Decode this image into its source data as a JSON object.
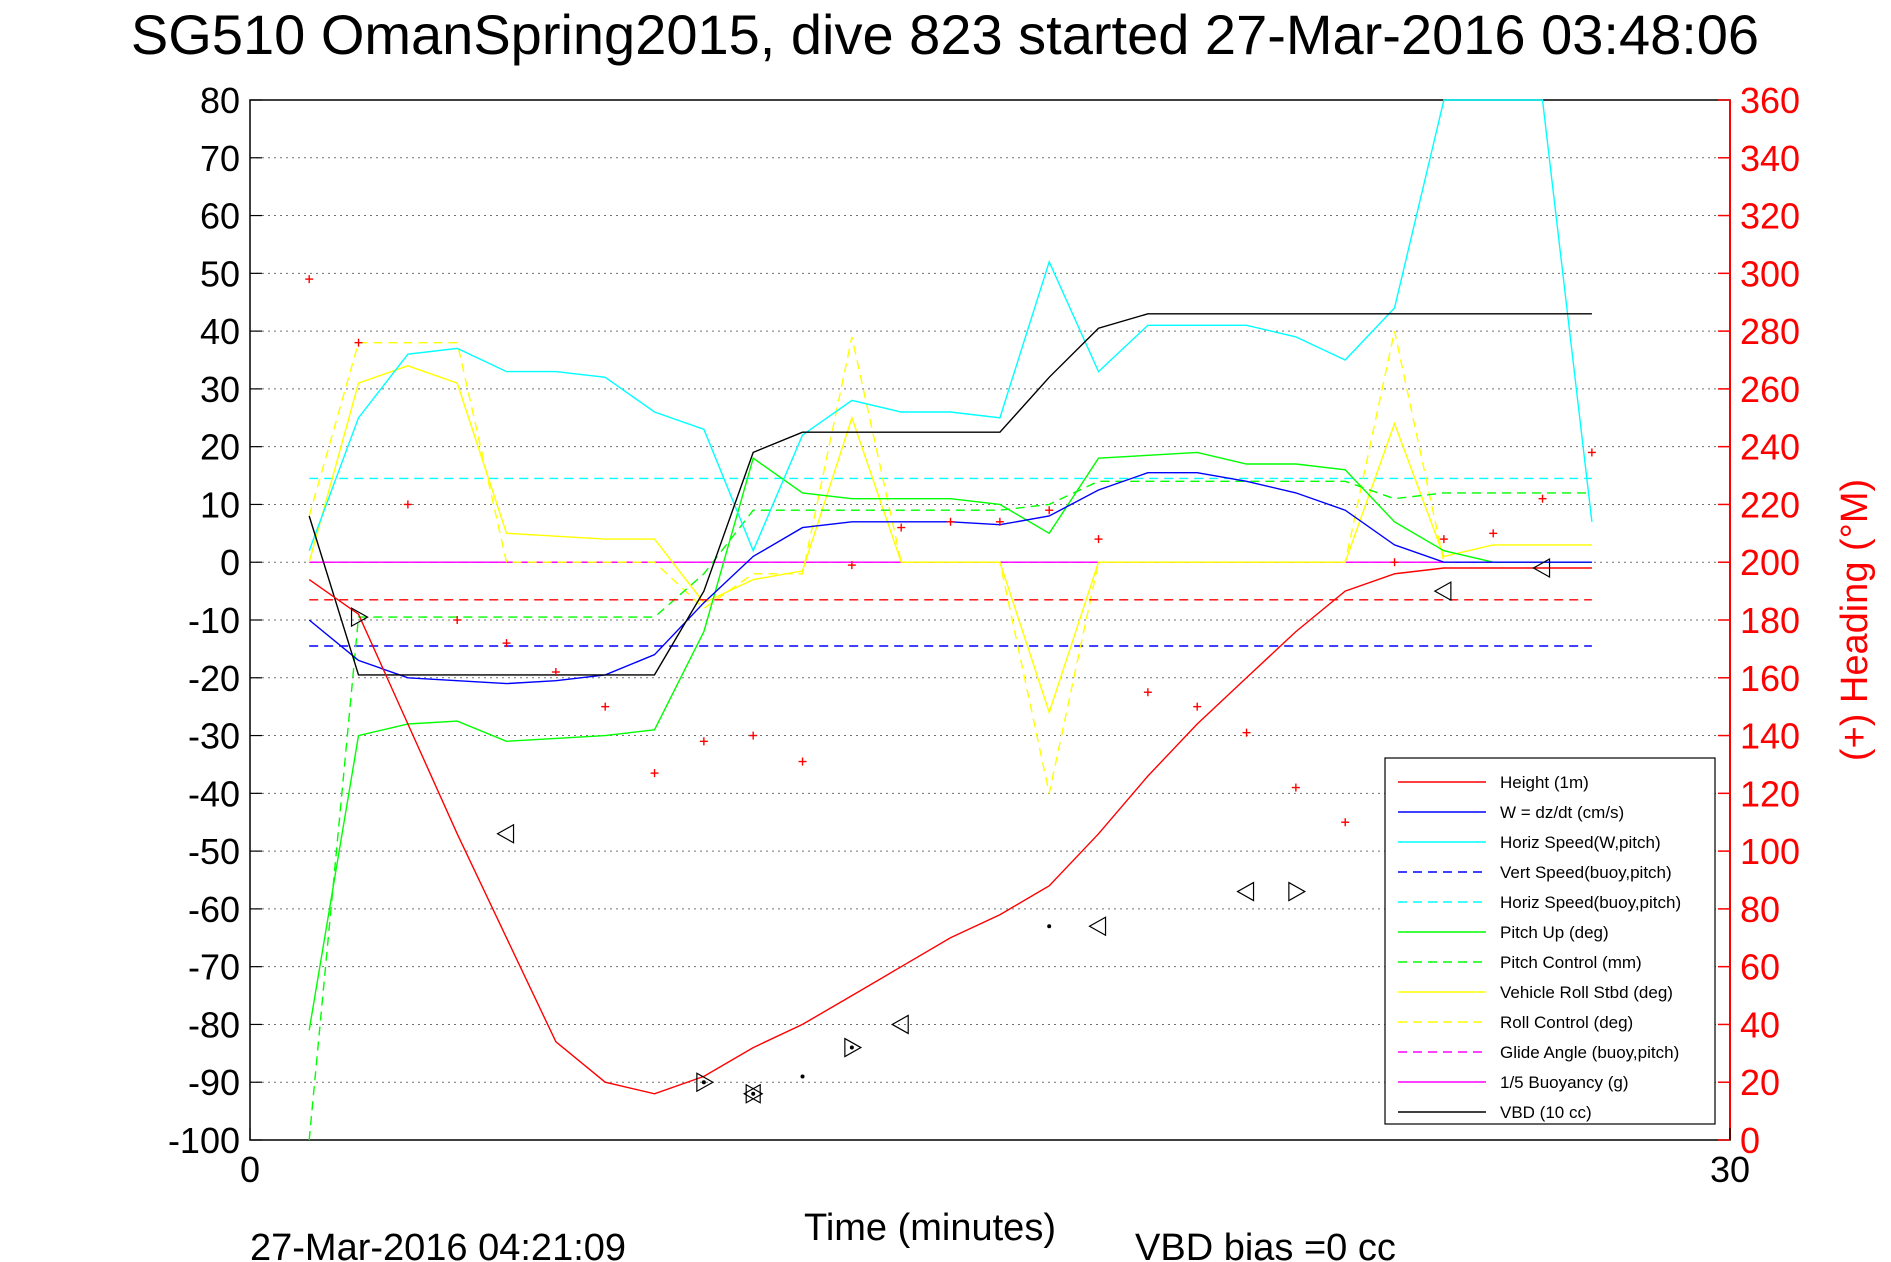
{
  "chart_data": {
    "type": "line",
    "title": "SG510 OmanSpring2015, dive 823 started 27-Mar-2016 03:48:06",
    "xlabel": "Time (minutes)",
    "ylabel_right": "(+) Heading (°M)",
    "footer_left": "27-Mar-2016 04:21:09",
    "footer_right": "VBD bias =0 cc",
    "xlim": [
      0,
      30
    ],
    "ylim": [
      -100,
      80
    ],
    "y2lim": [
      0,
      360
    ],
    "grid": true,
    "legend_position": "bottom-right",
    "x_ticks": [
      "0",
      "30"
    ],
    "y_ticks": [
      "80",
      "70",
      "60",
      "50",
      "40",
      "30",
      "20",
      "10",
      "0",
      "-10",
      "-20",
      "-30",
      "-40",
      "-50",
      "-60",
      "-70",
      "-80",
      "-90",
      "-100"
    ],
    "y2_ticks": [
      "360",
      "340",
      "320",
      "300",
      "280",
      "260",
      "240",
      "220",
      "200",
      "180",
      "160",
      "140",
      "120",
      "100",
      "80",
      "60",
      "40",
      "20",
      "0"
    ],
    "colors": {
      "red": "#ff0000",
      "blue": "#0000ff",
      "cyan": "#00ffff",
      "green": "#00ff00",
      "yellow": "#ffff00",
      "magenta": "#ff00ff",
      "black": "#000000"
    },
    "series": [
      {
        "name": "Height (1m)",
        "color": "#ff0000",
        "dash": false,
        "x": [
          1.2,
          2.2,
          3.2,
          4.2,
          5.2,
          6.2,
          7.2,
          8.2,
          9.2,
          10.2,
          11.2,
          12.2,
          13.2,
          14.2,
          15.2,
          16.2,
          17.2,
          18.2,
          19.2,
          20.2,
          21.2,
          22.2,
          23.2,
          24.2,
          25.2,
          26.2,
          27.2
        ],
        "y": [
          -3,
          -9,
          -28,
          -47,
          -65,
          -83,
          -90,
          -92,
          -89,
          -84,
          -80,
          -75,
          -70,
          -65,
          -61,
          -56,
          -47,
          -37,
          -28,
          -20,
          -12,
          -5,
          -2,
          -1,
          -1,
          -1,
          -1
        ]
      },
      {
        "name": "W = dz/dt (cm/s)",
        "color": "#0000ff",
        "dash": false,
        "x": [
          1.2,
          2.2,
          3.2,
          4.2,
          5.2,
          6.2,
          7.2,
          8.2,
          9.2,
          10.2,
          11.2,
          12.2,
          13.2,
          14.2,
          15.2,
          16.2,
          17.2,
          18.2,
          19.2,
          20.2,
          21.2,
          22.2,
          23.2,
          24.2,
          25.2,
          26.2,
          27.2
        ],
        "y": [
          -10,
          -17,
          -20,
          -20.5,
          -21,
          -20.5,
          -19.5,
          -16,
          -7,
          1,
          6,
          7,
          7,
          7,
          6.5,
          8,
          12.5,
          15.5,
          15.5,
          14,
          12,
          9,
          3,
          0,
          0,
          0,
          0
        ]
      },
      {
        "name": "Horiz Speed(W,pitch)",
        "color": "#00ffff",
        "dash": false,
        "x": [
          1.2,
          2.2,
          3.2,
          4.2,
          5.2,
          6.2,
          7.2,
          8.2,
          9.2,
          10.2,
          11.2,
          12.2,
          13.2,
          14.2,
          15.2,
          16.2,
          17.2,
          18.2,
          19.2,
          20.2,
          21.2,
          22.2,
          23.2,
          24.2,
          25.2,
          26.2,
          27.2
        ],
        "y": [
          2,
          25,
          36,
          37,
          33,
          33,
          32,
          26,
          23,
          2,
          22,
          28,
          26,
          26,
          25,
          52,
          33,
          41,
          41,
          41,
          39,
          35,
          44,
          82,
          82,
          82,
          7
        ]
      },
      {
        "name": "Vert Speed(buoy,pitch)",
        "color": "#0000ff",
        "dash": true,
        "x": [
          1.2,
          27.2
        ],
        "y": [
          -14.5,
          -14.5
        ]
      },
      {
        "name": "Horiz Speed(buoy,pitch)",
        "color": "#00ffff",
        "dash": true,
        "x": [
          1.2,
          27.2
        ],
        "y": [
          14.5,
          14.5
        ]
      },
      {
        "name": "Pitch Up (deg)",
        "color": "#00ff00",
        "dash": false,
        "x": [
          1.2,
          2.2,
          3.2,
          4.2,
          5.2,
          6.2,
          7.2,
          8.2,
          9.2,
          10.2,
          11.2,
          12.2,
          13.2,
          14.2,
          15.2,
          16.2,
          17.2,
          18.2,
          19.2,
          20.2,
          21.2,
          22.2,
          23.2,
          24.2,
          25.2,
          26.2,
          27.2
        ],
        "y": [
          -81,
          -30,
          -28,
          -27.5,
          -31,
          -30.5,
          -30,
          -29,
          -12,
          18,
          12,
          11,
          11,
          11,
          10,
          5,
          18,
          18.5,
          19,
          17,
          17,
          16,
          7,
          2,
          0,
          0,
          0
        ]
      },
      {
        "name": "Pitch Control (mm)",
        "color": "#00ff00",
        "dash": true,
        "x": [
          1.2,
          2.2,
          3.2,
          4.2,
          5.2,
          6.2,
          7.2,
          8.2,
          9.2,
          10.2,
          11.2,
          12.2,
          13.2,
          14.2,
          15.2,
          16.2,
          17.2,
          18.2,
          19.2,
          20.2,
          21.2,
          22.2,
          23.2,
          24.2,
          25.2,
          26.2,
          27.2
        ],
        "y": [
          -100,
          -9.5,
          -9.5,
          -9.5,
          -9.5,
          -9.5,
          -9.5,
          -9.5,
          -2,
          9,
          9,
          9,
          9,
          9,
          9,
          10,
          14,
          14,
          14,
          14,
          14,
          14,
          11,
          12,
          12,
          12,
          12
        ]
      },
      {
        "name": "Vehicle Roll Stbd (deg)",
        "color": "#ffff00",
        "dash": false,
        "x": [
          1.2,
          2.2,
          3.2,
          4.2,
          5.2,
          6.2,
          7.2,
          8.2,
          9.2,
          10.2,
          11.2,
          12.2,
          13.2,
          14.2,
          15.2,
          16.2,
          17.2,
          18.2,
          19.2,
          20.2,
          21.2,
          22.2,
          23.2,
          24.2,
          25.2,
          26.2,
          27.2
        ],
        "y": [
          0,
          31,
          34,
          31,
          5,
          4.5,
          4,
          4,
          -7,
          -3,
          -1.5,
          25,
          0,
          0,
          0,
          -26,
          0,
          0,
          0,
          0,
          0,
          0,
          24,
          1,
          3,
          3,
          3
        ]
      },
      {
        "name": "Roll Control (deg)",
        "color": "#ffff00",
        "dash": true,
        "x": [
          1.2,
          2.2,
          3.2,
          4.2,
          5.2,
          6.2,
          7.2,
          8.2,
          9.2,
          10.2,
          11.2,
          12.2,
          13.2,
          14.2,
          15.2,
          16.2,
          17.2,
          18.2,
          19.2,
          20.2,
          21.2,
          22.2,
          23.2,
          24.2,
          25.2,
          26.2,
          27.2
        ],
        "y": [
          8,
          38,
          38,
          38,
          0,
          0,
          0,
          0,
          -8,
          -2,
          -2,
          39,
          0,
          0,
          0,
          -40,
          0,
          0,
          0,
          0,
          0,
          0,
          40,
          0,
          0,
          0,
          0
        ]
      },
      {
        "name": "Glide Angle (buoy,pitch)",
        "color": "#ff00ff",
        "dash": true,
        "x": [
          1.2,
          27.2
        ],
        "y": [
          0,
          0
        ]
      },
      {
        "name": "1/5 Buoyancy (g)",
        "color": "#ff00ff",
        "dash": false,
        "x": [
          1.2,
          27.2
        ],
        "y": [
          0,
          0
        ]
      },
      {
        "name": "VBD (10 cc)",
        "color": "#000000",
        "dash": false,
        "x": [
          1.2,
          2.2,
          3.2,
          4.2,
          5.2,
          6.2,
          7.2,
          8.2,
          9.2,
          10.2,
          11.2,
          12.2,
          13.2,
          14.2,
          15.2,
          16.2,
          17.2,
          18.2,
          19.2,
          20.2,
          21.2,
          22.2,
          23.2,
          24.2,
          25.2,
          26.2,
          27.2
        ],
        "y": [
          8,
          -19.5,
          -19.5,
          -19.5,
          -19.5,
          -19.5,
          -19.5,
          -19.5,
          -5,
          19,
          22.5,
          22.5,
          22.5,
          22.5,
          22.5,
          32,
          40.5,
          43,
          43,
          43,
          43,
          43,
          43,
          43,
          43,
          43,
          43
        ]
      }
    ],
    "reference_lines": [
      {
        "color": "#ff0000",
        "dash": true,
        "y": -6.5,
        "x": [
          1.2,
          27.2
        ]
      }
    ],
    "heading_points": {
      "color": "#ff0000",
      "x": [
        1.2,
        2.2,
        3.2,
        4.2,
        5.2,
        6.2,
        7.2,
        8.2,
        9.2,
        10.2,
        11.2,
        12.2,
        13.2,
        14.2,
        15.2,
        16.2,
        17.2,
        18.2,
        19.2,
        20.2,
        21.2,
        22.2,
        23.2,
        24.2,
        25.2,
        26.2,
        27.2
      ],
      "y": [
        298,
        276,
        220,
        180,
        172,
        162,
        150,
        127,
        138,
        140,
        131,
        199,
        212,
        214,
        214,
        218,
        208,
        155,
        150,
        141,
        122,
        110,
        200,
        208,
        210,
        222,
        238
      ]
    },
    "markers_right": {
      "x": [
        2.2,
        9.2,
        10.2,
        12.2,
        21.2
      ],
      "y": [
        -9.5,
        -90,
        -92,
        -84,
        -57
      ]
    },
    "markers_left": {
      "x": [
        5.2,
        10.2,
        13.2,
        17.2,
        20.2,
        24.2,
        26.2
      ],
      "y": [
        -47,
        -92,
        -80,
        -63,
        -57,
        -5,
        -1
      ]
    },
    "black_dots": {
      "x": [
        9.2,
        10.2,
        11.2,
        12.2,
        16.2
      ],
      "y": [
        -90,
        -92,
        -89,
        -84,
        -63
      ]
    }
  }
}
